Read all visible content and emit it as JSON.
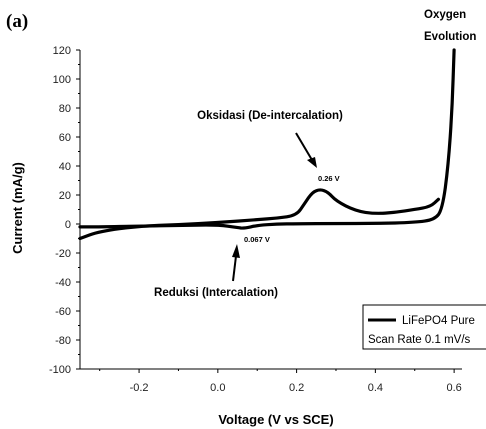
{
  "panel_label": "(a)",
  "chart_data": {
    "type": "line",
    "xlabel": "Voltage (V vs SCE)",
    "ylabel": "Current (mA/g)",
    "xlim": [
      -0.35,
      0.62
    ],
    "ylim": [
      -100,
      120
    ],
    "x_ticks": [
      -0.2,
      0.0,
      0.2,
      0.4,
      0.6
    ],
    "x_tick_labels": [
      "-0.2",
      "0.0",
      "0.2",
      "0.4",
      "0.6"
    ],
    "y_ticks": [
      -100,
      -80,
      -60,
      -40,
      -20,
      0,
      20,
      40,
      60,
      80,
      100,
      120
    ],
    "y_tick_labels": [
      "-100",
      "-80",
      "-60",
      "-40",
      "-20",
      "0",
      "20",
      "40",
      "60",
      "80",
      "100",
      "120"
    ],
    "grid": false,
    "legend_position": "bottom-right",
    "series": [
      {
        "name": "LiFePO4 Pure",
        "color": "#000000",
        "points": [
          [
            -0.35,
            -2
          ],
          [
            -0.3,
            -2
          ],
          [
            -0.2,
            -1.5
          ],
          [
            -0.1,
            -1
          ],
          [
            0.0,
            -0.5
          ],
          [
            0.05,
            -2.5
          ],
          [
            0.067,
            -3
          ],
          [
            0.1,
            -1
          ],
          [
            0.15,
            0
          ],
          [
            0.2,
            0.2
          ],
          [
            0.3,
            0.3
          ],
          [
            0.4,
            0.4
          ],
          [
            0.5,
            1
          ],
          [
            0.55,
            3
          ],
          [
            0.57,
            10
          ],
          [
            0.585,
            40
          ],
          [
            0.595,
            80
          ],
          [
            0.6,
            120
          ]
        ]
      },
      {
        "name": "",
        "color": "#000000",
        "points": [
          [
            0.56,
            17
          ],
          [
            0.54,
            12
          ],
          [
            0.5,
            10
          ],
          [
            0.45,
            8
          ],
          [
            0.4,
            7
          ],
          [
            0.35,
            9
          ],
          [
            0.3,
            16
          ],
          [
            0.28,
            22
          ],
          [
            0.26,
            24
          ],
          [
            0.24,
            22
          ],
          [
            0.22,
            14
          ],
          [
            0.2,
            6
          ],
          [
            0.15,
            4
          ],
          [
            0.1,
            3
          ],
          [
            0.0,
            1
          ],
          [
            -0.1,
            -0.5
          ],
          [
            -0.2,
            -1.5
          ],
          [
            -0.3,
            -5
          ],
          [
            -0.35,
            -10
          ]
        ]
      }
    ],
    "annotations": [
      {
        "text": "Oksidasi (De-intercalation)",
        "x": 0.2,
        "y": 45
      },
      {
        "text": "0.26 V",
        "x": 0.26,
        "y": 24
      },
      {
        "text": "Reduksi (Intercalation)",
        "x": 0.06,
        "y": -35
      },
      {
        "text": "0.067 V",
        "x": 0.067,
        "y": -3
      },
      {
        "text": "Oxygen Evolution",
        "x": 0.6,
        "y": 120
      }
    ],
    "legend": {
      "series_label": "LiFePO4 Pure",
      "scan_rate": "Scan Rate 0.1 mV/s"
    }
  }
}
